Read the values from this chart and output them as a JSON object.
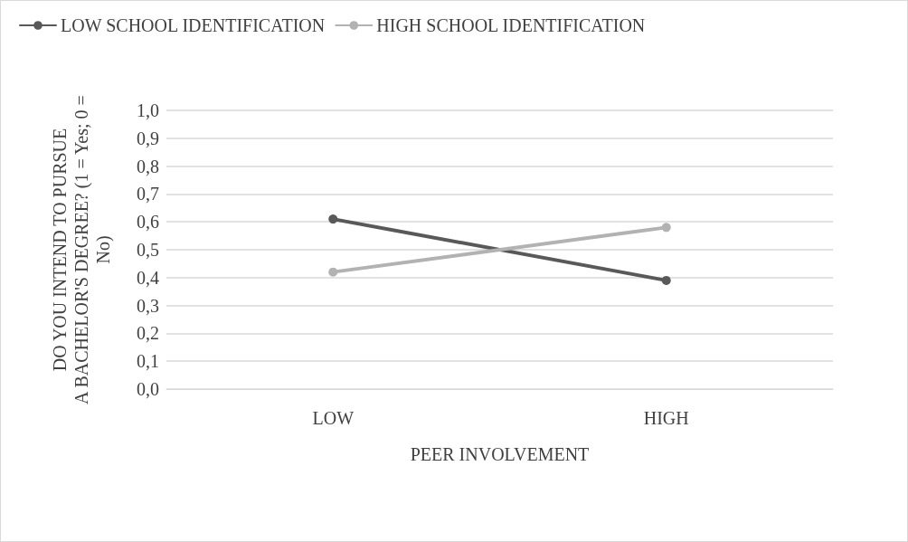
{
  "chart_data": {
    "type": "line",
    "xlabel": "PEER INVOLVEMENT",
    "ylabel": "DO YOU INTEND TO PURSUE\nA BACHELOR'S DEGREE? (1 = Yes; 0 =\nNo)",
    "categories": [
      "LOW",
      "HIGH"
    ],
    "series": [
      {
        "name": "LOW SCHOOL IDENTIFICATION",
        "color": "#595959",
        "values": [
          0.61,
          0.39
        ]
      },
      {
        "name": "HIGH SCHOOL IDENTIFICATION",
        "color": "#b2b2b2",
        "values": [
          0.42,
          0.58
        ]
      }
    ],
    "ylim": [
      0,
      1
    ],
    "yticks": [
      {
        "value": 0,
        "label": "0,0"
      },
      {
        "value": 0.1,
        "label": "0,1"
      },
      {
        "value": 0.2,
        "label": "0,2"
      },
      {
        "value": 0.3,
        "label": "0,3"
      },
      {
        "value": 0.4,
        "label": "0,4"
      },
      {
        "value": 0.5,
        "label": "0,5"
      },
      {
        "value": 0.6,
        "label": "0,6"
      },
      {
        "value": 0.7,
        "label": "0,7"
      },
      {
        "value": 0.8,
        "label": "0,8"
      },
      {
        "value": 0.9,
        "label": "0,9"
      },
      {
        "value": 1,
        "label": "1,0"
      }
    ],
    "grid": "y",
    "legend": "top left",
    "marker": "circle",
    "line_style": "solid"
  }
}
